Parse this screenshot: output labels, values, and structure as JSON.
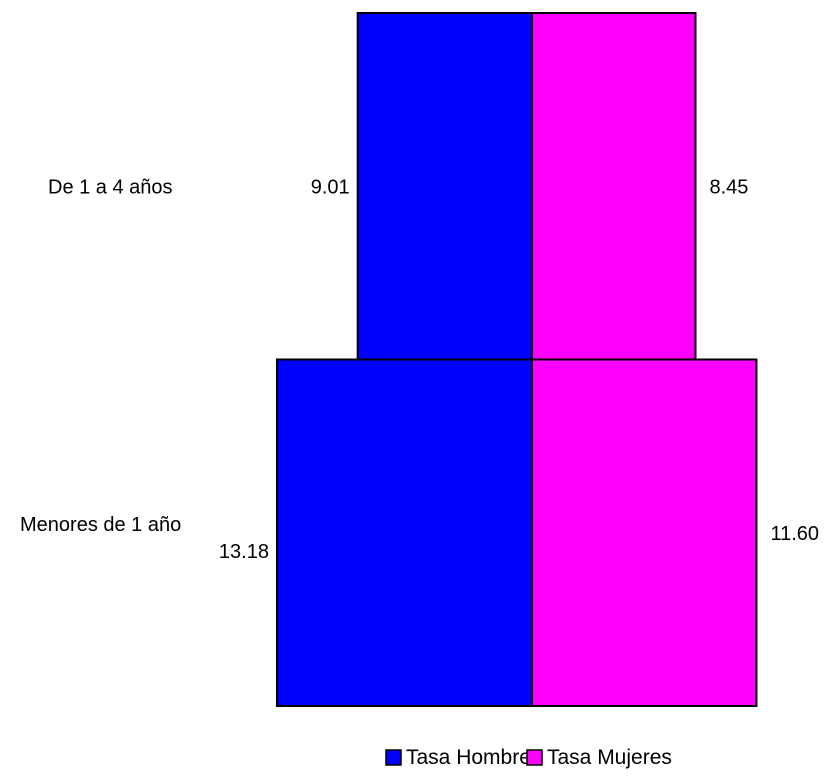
{
  "chart_data": {
    "type": "bar",
    "subtype": "population-pyramid",
    "orientation": "horizontal",
    "categories": [
      "Menores de 1 año",
      "De 1 a 4 años"
    ],
    "series": [
      {
        "name": "Tasa Hombres",
        "color": "#0000FF",
        "values": [
          13.18,
          9.01
        ],
        "labels": [
          "13.18",
          "9.01"
        ]
      },
      {
        "name": "Tasa Mujeres",
        "color": "#FF00FF",
        "values": [
          11.6,
          8.45
        ],
        "labels": [
          "11.60",
          "8.45"
        ]
      }
    ],
    "legend_position": "bottom",
    "grid": false
  }
}
